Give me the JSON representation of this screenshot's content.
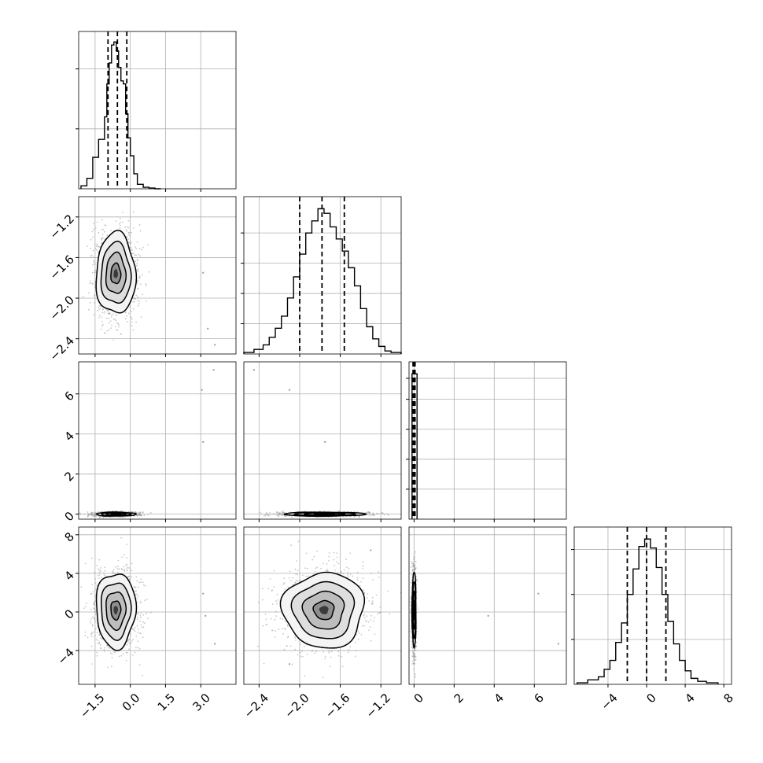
{
  "chart_data": {
    "type": "corner",
    "title": "",
    "parameters": [
      {
        "label": "",
        "range": [
          -2.2,
          4.5
        ],
        "ticks": [
          {
            "v": -1.5,
            "t": "−1.5"
          },
          {
            "v": 0.0,
            "t": "0.0"
          },
          {
            "v": 1.5,
            "t": "1.5"
          },
          {
            "v": 3.0,
            "t": "3.0"
          }
        ],
        "quantiles": [
          -0.95,
          -0.55,
          -0.15
        ],
        "hist_edges": [
          -2.1,
          -1.85,
          -1.6,
          -1.35,
          -1.1,
          -1.0,
          -0.9,
          -0.8,
          -0.7,
          -0.6,
          -0.5,
          -0.4,
          -0.3,
          -0.2,
          -0.1,
          0.0,
          0.15,
          0.3,
          0.55,
          0.8,
          1.05,
          1.3
        ],
        "hist_counts": [
          0.02,
          0.07,
          0.21,
          0.33,
          0.48,
          0.7,
          0.84,
          0.96,
          0.98,
          0.92,
          0.81,
          0.72,
          0.7,
          0.5,
          0.34,
          0.22,
          0.1,
          0.03,
          0.01,
          0.005,
          0.0
        ],
        "hist_ymax": 1.05,
        "hist_yticks": [
          0.4,
          0.8
        ]
      },
      {
        "label": "",
        "range": [
          -2.55,
          -1.0
        ],
        "ticks": [
          {
            "v": -2.4,
            "t": "−2.4"
          },
          {
            "v": -2.0,
            "t": "−2.0"
          },
          {
            "v": -1.6,
            "t": "−1.6"
          },
          {
            "v": -1.2,
            "t": "−1.2"
          }
        ],
        "quantiles": [
          -2.0,
          -1.78,
          -1.56
        ],
        "hist_edges": [
          -2.55,
          -2.45,
          -2.36,
          -2.3,
          -2.24,
          -2.18,
          -2.12,
          -2.06,
          -2.0,
          -1.94,
          -1.88,
          -1.82,
          -1.76,
          -1.7,
          -1.64,
          -1.58,
          -1.52,
          -1.46,
          -1.4,
          -1.34,
          -1.28,
          -1.22,
          -1.16,
          -1.1,
          -1.0
        ],
        "hist_counts": [
          0.01,
          0.03,
          0.06,
          0.11,
          0.17,
          0.25,
          0.37,
          0.51,
          0.66,
          0.8,
          0.88,
          0.96,
          0.93,
          0.84,
          0.76,
          0.68,
          0.57,
          0.45,
          0.3,
          0.18,
          0.1,
          0.05,
          0.02,
          0.01
        ],
        "hist_ymax": 1.04,
        "hist_yticks": [
          0.2,
          0.4,
          0.6,
          0.8
        ]
      },
      {
        "label": "",
        "range": [
          -0.25,
          7.6
        ],
        "ticks": [
          {
            "v": 0,
            "t": "0"
          },
          {
            "v": 2,
            "t": "2"
          },
          {
            "v": 4,
            "t": "4"
          },
          {
            "v": 6,
            "t": "6"
          }
        ],
        "quantiles": [
          -0.05,
          0.0,
          0.05
        ],
        "hist_edges": [
          -0.1,
          0.15
        ],
        "hist_counts": [
          0.97
        ],
        "hist_ymax": 1.05,
        "hist_yticks": [
          0.2,
          0.4,
          0.6,
          0.8,
          0.94
        ]
      },
      {
        "label": "",
        "range": [
          -7.5,
          8.8
        ],
        "ticks": [
          {
            "v": -4,
            "t": "−4"
          },
          {
            "v": 0,
            "t": "0"
          },
          {
            "v": 4,
            "t": "4"
          },
          {
            "v": 8,
            "t": "8"
          }
        ],
        "quantiles": [
          -2.0,
          0.0,
          2.0
        ],
        "hist_edges": [
          -7.2,
          -6.1,
          -5.0,
          -4.4,
          -3.8,
          -3.2,
          -2.6,
          -2.0,
          -1.4,
          -0.8,
          -0.2,
          0.4,
          1.0,
          1.6,
          2.2,
          2.8,
          3.4,
          4.0,
          4.6,
          5.3,
          6.2,
          7.4
        ],
        "hist_counts": [
          0.01,
          0.03,
          0.05,
          0.1,
          0.16,
          0.28,
          0.41,
          0.6,
          0.77,
          0.92,
          0.97,
          0.91,
          0.78,
          0.6,
          0.42,
          0.27,
          0.16,
          0.09,
          0.04,
          0.02,
          0.01
        ],
        "hist_ymax": 1.05,
        "hist_yticks": [
          0.3,
          0.6,
          0.9
        ]
      }
    ],
    "pairs": [
      {
        "i": 0,
        "j": 1,
        "center": [
          -0.62,
          -1.76
        ],
        "sigma": [
          0.42,
          0.2
        ],
        "contour_levels": [
          0.5,
          1.0,
          1.5,
          2.0
        ],
        "outliers": [
          [
            3.1,
            -1.75
          ],
          [
            3.6,
            -2.46
          ],
          [
            3.3,
            -2.3
          ]
        ]
      },
      {
        "i": 0,
        "j": 2,
        "center": [
          -0.62,
          0.0
        ],
        "sigma": [
          0.42,
          0.05
        ],
        "contour_levels": [
          0.5,
          1.0,
          1.5,
          2.0
        ],
        "outliers": [
          [
            3.55,
            7.2
          ],
          [
            3.05,
            6.2
          ],
          [
            3.1,
            3.6
          ]
        ]
      },
      {
        "i": 1,
        "j": 2,
        "center": [
          -1.76,
          0.0
        ],
        "sigma": [
          0.2,
          0.05
        ],
        "contour_levels": [
          0.5,
          1.0,
          1.5,
          2.0
        ],
        "outliers": [
          [
            -2.45,
            7.2
          ],
          [
            -2.1,
            6.2
          ],
          [
            -1.75,
            3.6
          ]
        ]
      },
      {
        "i": 0,
        "j": 3,
        "center": [
          -0.62,
          0.2
        ],
        "sigma": [
          0.42,
          1.95
        ],
        "contour_levels": [
          0.5,
          1.0,
          1.5,
          2.0
        ],
        "outliers": [
          [
            3.1,
            1.9
          ],
          [
            3.2,
            -0.4
          ],
          [
            3.6,
            -3.3
          ]
        ]
      },
      {
        "i": 1,
        "j": 3,
        "center": [
          -1.76,
          0.2
        ],
        "sigma": [
          0.2,
          1.95
        ],
        "contour_levels": [
          0.5,
          1.0,
          1.5,
          2.0
        ],
        "outliers": [
          [
            -1.3,
            6.4
          ],
          [
            -2.1,
            -5.4
          ]
        ]
      },
      {
        "i": 2,
        "j": 3,
        "center": [
          0.0,
          0.2
        ],
        "sigma": [
          0.05,
          1.95
        ],
        "contour_levels": [
          0.5,
          1.0,
          1.5,
          2.0
        ],
        "outliers": [
          [
            6.2,
            1.9
          ],
          [
            3.7,
            -0.4
          ],
          [
            7.2,
            -3.3
          ]
        ]
      }
    ],
    "grid": true,
    "colors": {
      "contour": "#000000",
      "points": "#9a9a9a",
      "grid": "#b0b0b0",
      "frame": "#000000"
    }
  }
}
